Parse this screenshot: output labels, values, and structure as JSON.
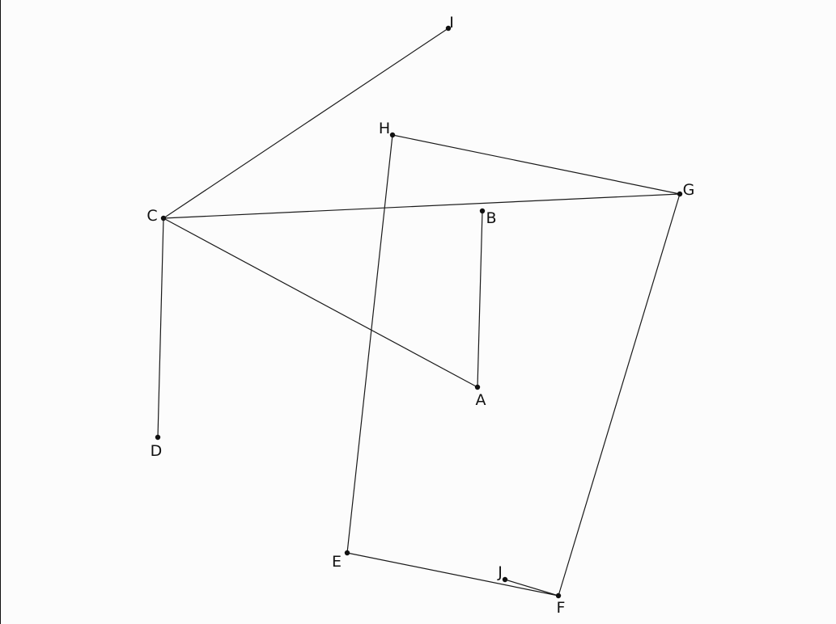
{
  "diagram": {
    "nodes": [
      {
        "id": "A",
        "label": "A"
      },
      {
        "id": "B",
        "label": "B"
      },
      {
        "id": "C",
        "label": "C"
      },
      {
        "id": "D",
        "label": "D"
      },
      {
        "id": "E",
        "label": "E"
      },
      {
        "id": "F",
        "label": "F"
      },
      {
        "id": "G",
        "label": "G"
      },
      {
        "id": "H",
        "label": "H"
      },
      {
        "id": "I",
        "label": "I"
      },
      {
        "id": "J",
        "label": "J"
      }
    ],
    "edges": [
      {
        "from": "C",
        "to": "I"
      },
      {
        "from": "C",
        "to": "G"
      },
      {
        "from": "C",
        "to": "A"
      },
      {
        "from": "C",
        "to": "D"
      },
      {
        "from": "A",
        "to": "B"
      },
      {
        "from": "H",
        "to": "G"
      },
      {
        "from": "H",
        "to": "E"
      },
      {
        "from": "G",
        "to": "F"
      },
      {
        "from": "E",
        "to": "F"
      },
      {
        "from": "J",
        "to": "F"
      }
    ]
  }
}
